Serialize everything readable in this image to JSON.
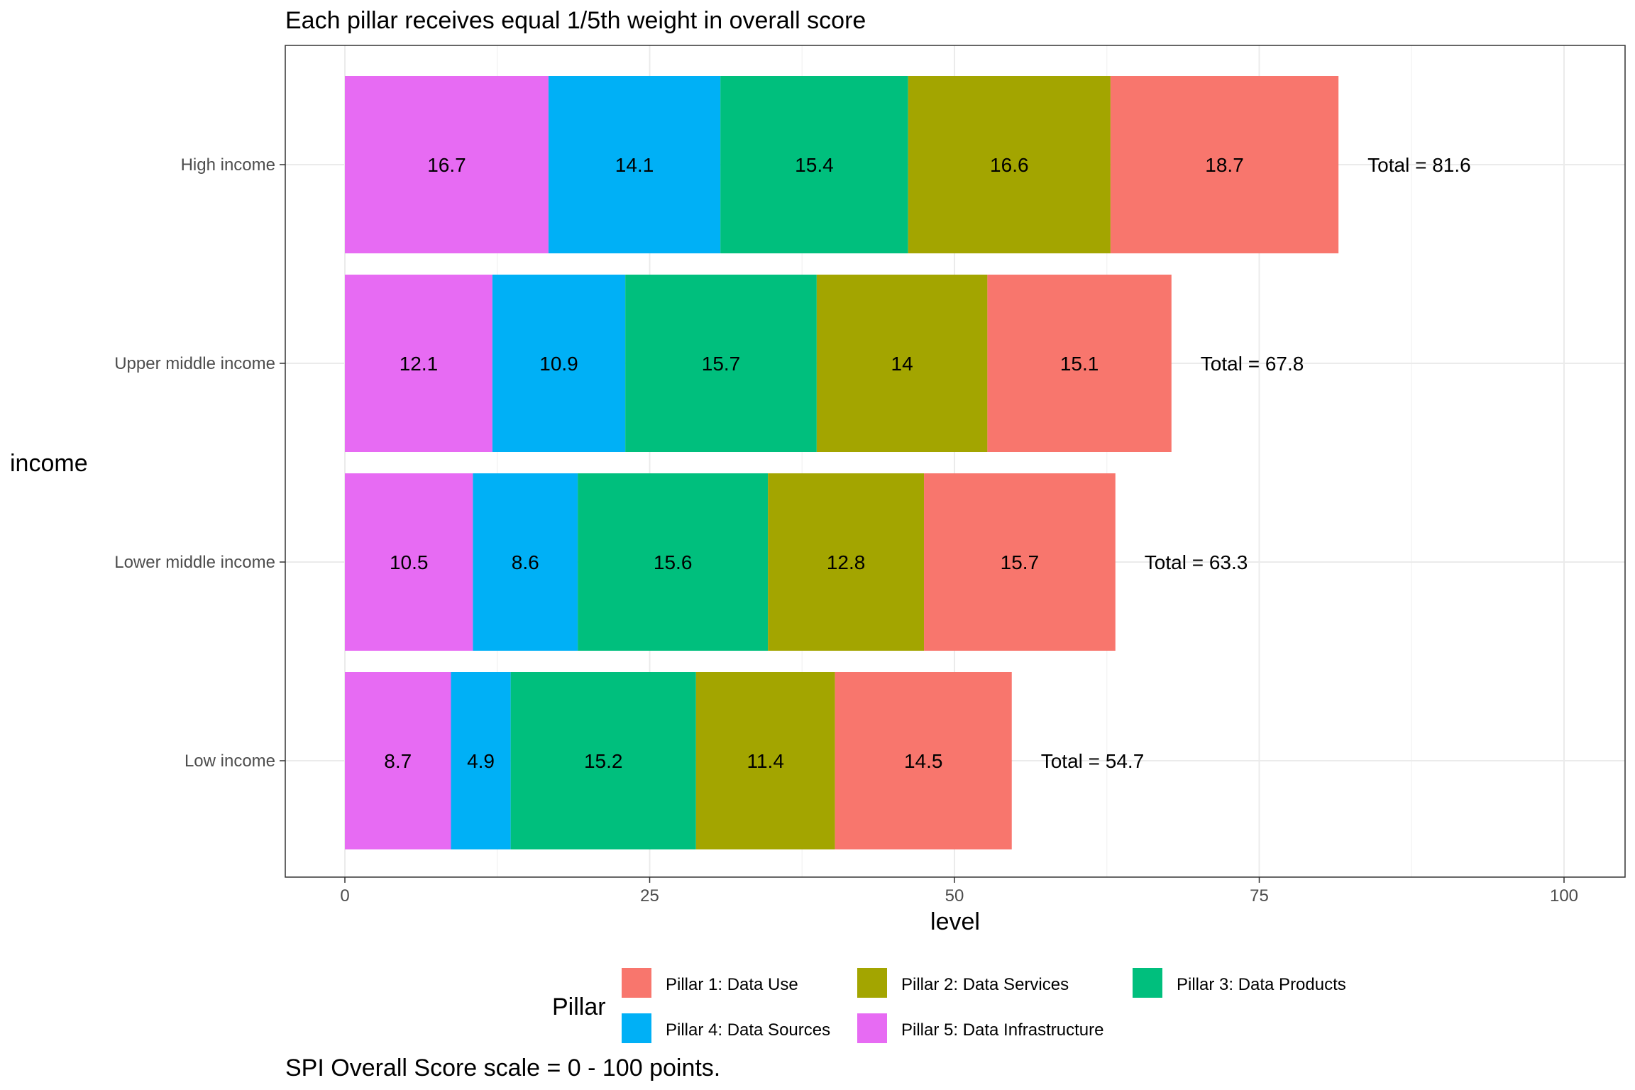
{
  "chart_data": {
    "type": "bar",
    "orientation": "horizontal",
    "stacked": true,
    "title": "Each pillar receives equal 1/5th weight in overall score",
    "caption": "SPI Overall Score scale = 0 - 100 points.",
    "xlabel": "level",
    "ylabel": "income",
    "xlim": [
      0,
      100
    ],
    "x_ticks": [
      0,
      25,
      50,
      75,
      100
    ],
    "grid": true,
    "legend_position": "bottom",
    "legend_title": "Pillar",
    "categories": [
      "High income",
      "Upper middle income",
      "Lower middle income",
      "Low income"
    ],
    "series": [
      {
        "name": "Pillar 5: Data Infrastructure",
        "color": "#E76BF3",
        "values": [
          16.7,
          12.1,
          10.5,
          8.7
        ]
      },
      {
        "name": "Pillar 4: Data Sources",
        "color": "#00B0F6",
        "values": [
          14.1,
          10.9,
          8.6,
          4.9
        ]
      },
      {
        "name": "Pillar 3: Data Products",
        "color": "#00BF7D",
        "values": [
          15.4,
          15.7,
          15.6,
          15.2
        ]
      },
      {
        "name": "Pillar 2: Data Services",
        "color": "#A3A500",
        "values": [
          16.6,
          14,
          12.8,
          11.4
        ]
      },
      {
        "name": "Pillar 1: Data Use",
        "color": "#F8766D",
        "values": [
          18.7,
          15.1,
          15.7,
          14.5
        ]
      }
    ],
    "total_labels": [
      "Total = 81.6",
      "Total = 67.8",
      "Total = 63.3",
      "Total = 54.7"
    ],
    "legend_order": [
      "Pillar 1: Data Use",
      "Pillar 2: Data Services",
      "Pillar 3: Data Products",
      "Pillar 4: Data Sources",
      "Pillar 5: Data Infrastructure"
    ]
  }
}
